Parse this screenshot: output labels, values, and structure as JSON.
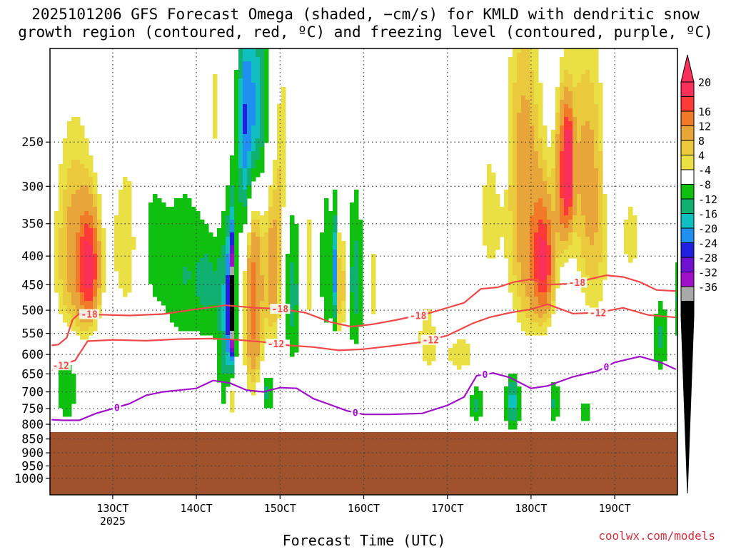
{
  "title": {
    "line1": "2025101206 GFS Forecast Omega (shaded, −cm/s) for KMLD with dendritic snow",
    "line2": "growth region (contoured, red, ºC) and freezing level (contoured, purple, ºC)"
  },
  "credit": "coolwx.com/models",
  "colors": {
    "ground": "#a0522d",
    "dgz_contour": "#f04848",
    "freezing_contour": "#a010c8",
    "grid": "#404040"
  },
  "chart_data": {
    "type": "heatmap",
    "xlabel": "Forecast Time (UTC)",
    "ylabel": "",
    "x_axis": {
      "units": "day of Oct 2025 (UTC)",
      "range": [
        12.25,
        19.75
      ],
      "ticks": [
        {
          "value": 13,
          "label": "13OCT",
          "sub": "2025"
        },
        {
          "value": 14,
          "label": "14OCT",
          "sub": ""
        },
        {
          "value": 15,
          "label": "15OCT",
          "sub": ""
        },
        {
          "value": 16,
          "label": "16OCT",
          "sub": ""
        },
        {
          "value": 17,
          "label": "17OCT",
          "sub": ""
        },
        {
          "value": 18,
          "label": "18OCT",
          "sub": ""
        },
        {
          "value": 19,
          "label": "19OCT",
          "sub": ""
        }
      ]
    },
    "y_axis": {
      "units": "hPa",
      "range": [
        170,
        1070
      ],
      "ticks": [
        250,
        300,
        350,
        400,
        450,
        500,
        550,
        600,
        650,
        700,
        750,
        800,
        850,
        900,
        950,
        1000
      ]
    },
    "ground_top_hPa": 826,
    "colorbar": {
      "labels": [
        20,
        16,
        12,
        8,
        4,
        -4,
        -8,
        -12,
        -16,
        -20,
        -24,
        -28,
        -32,
        -36
      ],
      "colors": [
        "#f8305a",
        "#ff3838",
        "#f07a28",
        "#e8a63a",
        "#eaca3c",
        "#eae046",
        "#ffffff",
        "#10c010",
        "#10b070",
        "#10c0c0",
        "#2090f0",
        "#2020e0",
        "#7010d0",
        "#a010c8",
        "#a8a8a8",
        "#000000"
      ]
    },
    "omega_blobs": [
      {
        "x": 12.55,
        "p": 400,
        "sx": 0.18,
        "sp": 130,
        "value": 10
      },
      {
        "x": 12.72,
        "p": 420,
        "sx": 0.08,
        "sp": 60,
        "value": 18
      },
      {
        "x": 13.2,
        "p": 380,
        "sx": 0.18,
        "sp": 110,
        "value": 6
      },
      {
        "x": 12.45,
        "p": 680,
        "sx": 0.1,
        "sp": 80,
        "value": -8
      },
      {
        "x": 13.45,
        "p": 380,
        "sx": 0.12,
        "sp": 80,
        "value": -7
      },
      {
        "x": 13.85,
        "p": 430,
        "sx": 0.2,
        "sp": 100,
        "value": -8
      },
      {
        "x": 14.15,
        "p": 450,
        "sx": 0.1,
        "sp": 70,
        "value": -7
      },
      {
        "x": 14.25,
        "p": 230,
        "sx": 0.12,
        "sp": 80,
        "value": 5
      },
      {
        "x": 14.68,
        "p": 480,
        "sx": 0.08,
        "sp": 150,
        "value": 14
      },
      {
        "x": 14.35,
        "p": 520,
        "sx": 0.07,
        "sp": 150,
        "value": -12
      },
      {
        "x": 14.42,
        "p": 490,
        "sx": 0.03,
        "sp": 100,
        "value": -36
      },
      {
        "x": 14.42,
        "p": 700,
        "sx": 0.03,
        "sp": 60,
        "value": 12
      },
      {
        "x": 14.57,
        "p": 250,
        "sx": 0.06,
        "sp": 90,
        "value": -14
      },
      {
        "x": 14.7,
        "p": 220,
        "sx": 0.1,
        "sp": 60,
        "value": -18
      },
      {
        "x": 15.03,
        "p": 250,
        "sx": 0.05,
        "sp": 70,
        "value": 5
      },
      {
        "x": 14.92,
        "p": 420,
        "sx": 0.08,
        "sp": 110,
        "value": 10
      },
      {
        "x": 15.15,
        "p": 470,
        "sx": 0.07,
        "sp": 100,
        "value": -10
      },
      {
        "x": 14.85,
        "p": 700,
        "sx": 0.06,
        "sp": 40,
        "value": -10
      },
      {
        "x": 15.35,
        "p": 420,
        "sx": 0.05,
        "sp": 90,
        "value": 6
      },
      {
        "x": 15.55,
        "p": 420,
        "sx": 0.05,
        "sp": 90,
        "value": -8
      },
      {
        "x": 15.65,
        "p": 430,
        "sx": 0.025,
        "sp": 70,
        "value": -22
      },
      {
        "x": 15.72,
        "p": 450,
        "sx": 0.05,
        "sp": 80,
        "value": 10
      },
      {
        "x": 15.9,
        "p": 440,
        "sx": 0.07,
        "sp": 100,
        "value": -10
      },
      {
        "x": 16.1,
        "p": 450,
        "sx": 0.06,
        "sp": 90,
        "value": 5
      },
      {
        "x": 16.75,
        "p": 550,
        "sx": 0.1,
        "sp": 80,
        "value": 5
      },
      {
        "x": 17.15,
        "p": 600,
        "sx": 0.2,
        "sp": 50,
        "value": 5
      },
      {
        "x": 17.5,
        "p": 340,
        "sx": 0.1,
        "sp": 80,
        "value": 5
      },
      {
        "x": 17.35,
        "p": 740,
        "sx": 0.05,
        "sp": 40,
        "value": -10
      },
      {
        "x": 17.65,
        "p": 270,
        "sx": 0.04,
        "sp": 20,
        "value": -6
      },
      {
        "x": 17.9,
        "p": 230,
        "sx": 0.15,
        "sp": 100,
        "value": 6
      },
      {
        "x": 18.0,
        "p": 400,
        "sx": 0.2,
        "sp": 120,
        "value": 9
      },
      {
        "x": 18.15,
        "p": 410,
        "sx": 0.08,
        "sp": 60,
        "value": 16
      },
      {
        "x": 18.4,
        "p": 290,
        "sx": 0.07,
        "sp": 60,
        "value": 16
      },
      {
        "x": 18.45,
        "p": 275,
        "sx": 0.03,
        "sp": 30,
        "value": 24
      },
      {
        "x": 18.75,
        "p": 360,
        "sx": 0.15,
        "sp": 130,
        "value": 7
      },
      {
        "x": 18.6,
        "p": 250,
        "sx": 0.15,
        "sp": 90,
        "value": 5
      },
      {
        "x": 18.95,
        "p": 260,
        "sx": 0.04,
        "sp": 80,
        "value": -7
      },
      {
        "x": 17.78,
        "p": 730,
        "sx": 0.06,
        "sp": 60,
        "value": -14
      },
      {
        "x": 18.28,
        "p": 730,
        "sx": 0.04,
        "sp": 50,
        "value": -9
      },
      {
        "x": 18.65,
        "p": 765,
        "sx": 0.04,
        "sp": 30,
        "value": -8
      },
      {
        "x": 19.55,
        "p": 560,
        "sx": 0.06,
        "sp": 60,
        "value": -9
      },
      {
        "x": 19.75,
        "p": 480,
        "sx": 0.04,
        "sp": 60,
        "value": -8
      },
      {
        "x": 19.2,
        "p": 370,
        "sx": 0.1,
        "sp": 60,
        "value": 5
      }
    ],
    "contours": [
      {
        "label": "-18",
        "kind": "dgz",
        "x": [
          12.27,
          12.35,
          12.45,
          12.52,
          12.6,
          12.8,
          13.2,
          13.6,
          14.0,
          14.35,
          14.7,
          15.0,
          15.3,
          15.6,
          15.85,
          16.1,
          16.4,
          16.8,
          17.2,
          17.4,
          17.6,
          17.8,
          18.0,
          18.2,
          18.5,
          18.7,
          18.9,
          19.1,
          19.3,
          19.5,
          19.73
        ],
        "p": [
          578,
          576,
          560,
          520,
          507,
          509,
          511,
          508,
          498,
          490,
          495,
          497,
          505,
          525,
          535,
          530,
          520,
          505,
          485,
          458,
          455,
          445,
          440,
          450,
          448,
          440,
          433,
          436,
          445,
          460,
          462
        ],
        "labels_at": [
          12.72,
          15.0,
          16.65,
          18.55
        ]
      },
      {
        "label": "-12",
        "kind": "dgz",
        "x": [
          12.27,
          12.4,
          12.55,
          12.7,
          13.0,
          13.4,
          13.8,
          14.2,
          14.5,
          14.8,
          15.1,
          15.4,
          15.7,
          16.0,
          16.3,
          16.7,
          17.0,
          17.3,
          17.5,
          17.75,
          18.0,
          18.2,
          18.5,
          18.8,
          19.1,
          19.4,
          19.73
        ],
        "p": [
          640,
          625,
          615,
          568,
          565,
          567,
          563,
          562,
          565,
          570,
          578,
          582,
          590,
          587,
          580,
          570,
          555,
          528,
          515,
          505,
          498,
          488,
          507,
          505,
          495,
          510,
          515
        ],
        "labels_at": [
          12.38,
          14.95,
          16.8,
          18.8
        ]
      },
      {
        "label": "0",
        "kind": "freezing",
        "x": [
          12.27,
          12.4,
          12.6,
          12.8,
          13.0,
          13.2,
          13.4,
          13.6,
          13.8,
          14.0,
          14.2,
          14.4,
          14.6,
          14.8,
          15.0,
          15.2,
          15.4,
          15.6,
          15.8,
          16.0,
          16.3,
          16.7,
          17.0,
          17.2,
          17.35,
          17.55,
          17.75,
          18.0,
          18.2,
          18.5,
          18.8,
          19.0,
          19.3,
          19.55,
          19.73
        ],
        "p": [
          785,
          787,
          787,
          765,
          750,
          735,
          710,
          700,
          695,
          690,
          668,
          675,
          695,
          700,
          688,
          690,
          720,
          738,
          757,
          768,
          768,
          765,
          740,
          715,
          655,
          648,
          660,
          690,
          683,
          658,
          642,
          620,
          605,
          620,
          638
        ],
        "labels_at": [
          13.05,
          15.9,
          17.45,
          18.9
        ]
      }
    ]
  }
}
